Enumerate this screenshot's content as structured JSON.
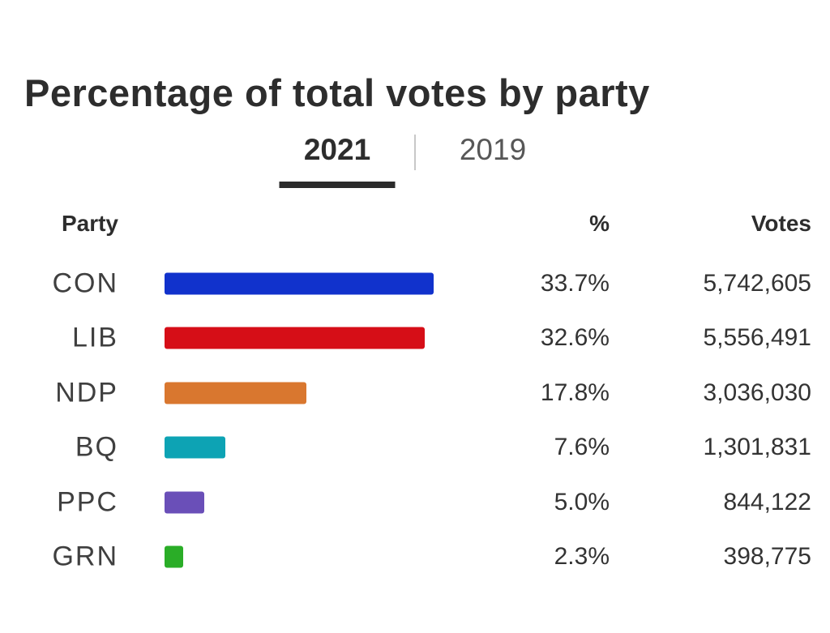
{
  "page": {
    "title": "Percentage of total votes by party"
  },
  "tabs": [
    {
      "label": "2021",
      "active": true
    },
    {
      "label": "2019",
      "active": false
    }
  ],
  "table": {
    "headers": {
      "party": "Party",
      "percent": "%",
      "votes": "Votes"
    }
  },
  "chart_data": {
    "type": "bar",
    "orientation": "horizontal",
    "title": "Percentage of total votes by party",
    "selected_tab": "2021",
    "tab_options": [
      "2021",
      "2019"
    ],
    "categories": [
      "CON",
      "LIB",
      "NDP",
      "BQ",
      "PPC",
      "GRN"
    ],
    "values": [
      33.7,
      32.6,
      17.8,
      7.6,
      5.0,
      2.3
    ],
    "percent_labels": [
      "33.7%",
      "32.6%",
      "17.8%",
      "7.6%",
      "5.0%",
      "2.3%"
    ],
    "votes": [
      "5,742,605",
      "5,556,491",
      "3,036,030",
      "1,301,831",
      "844,122",
      "398,775"
    ],
    "bar_colors": [
      "#1132cc",
      "#d60e17",
      "#d9772f",
      "#0da3b4",
      "#6a4fb8",
      "#2aad27"
    ],
    "xlim": [
      0,
      34
    ],
    "xlabel": "%",
    "ylabel": "Party",
    "grid": false,
    "legend": false
  },
  "ui_colors": {
    "title_text": "#2d2d2d",
    "active_text": "#2d2d2d",
    "inactive_text": "#575757",
    "tab_underline": "#2b2b2b",
    "tab_divider": "#c8c8c8",
    "header_text": "#2d2d2d",
    "party_label_text": "#3f3f3f",
    "value_text": "#333333"
  }
}
